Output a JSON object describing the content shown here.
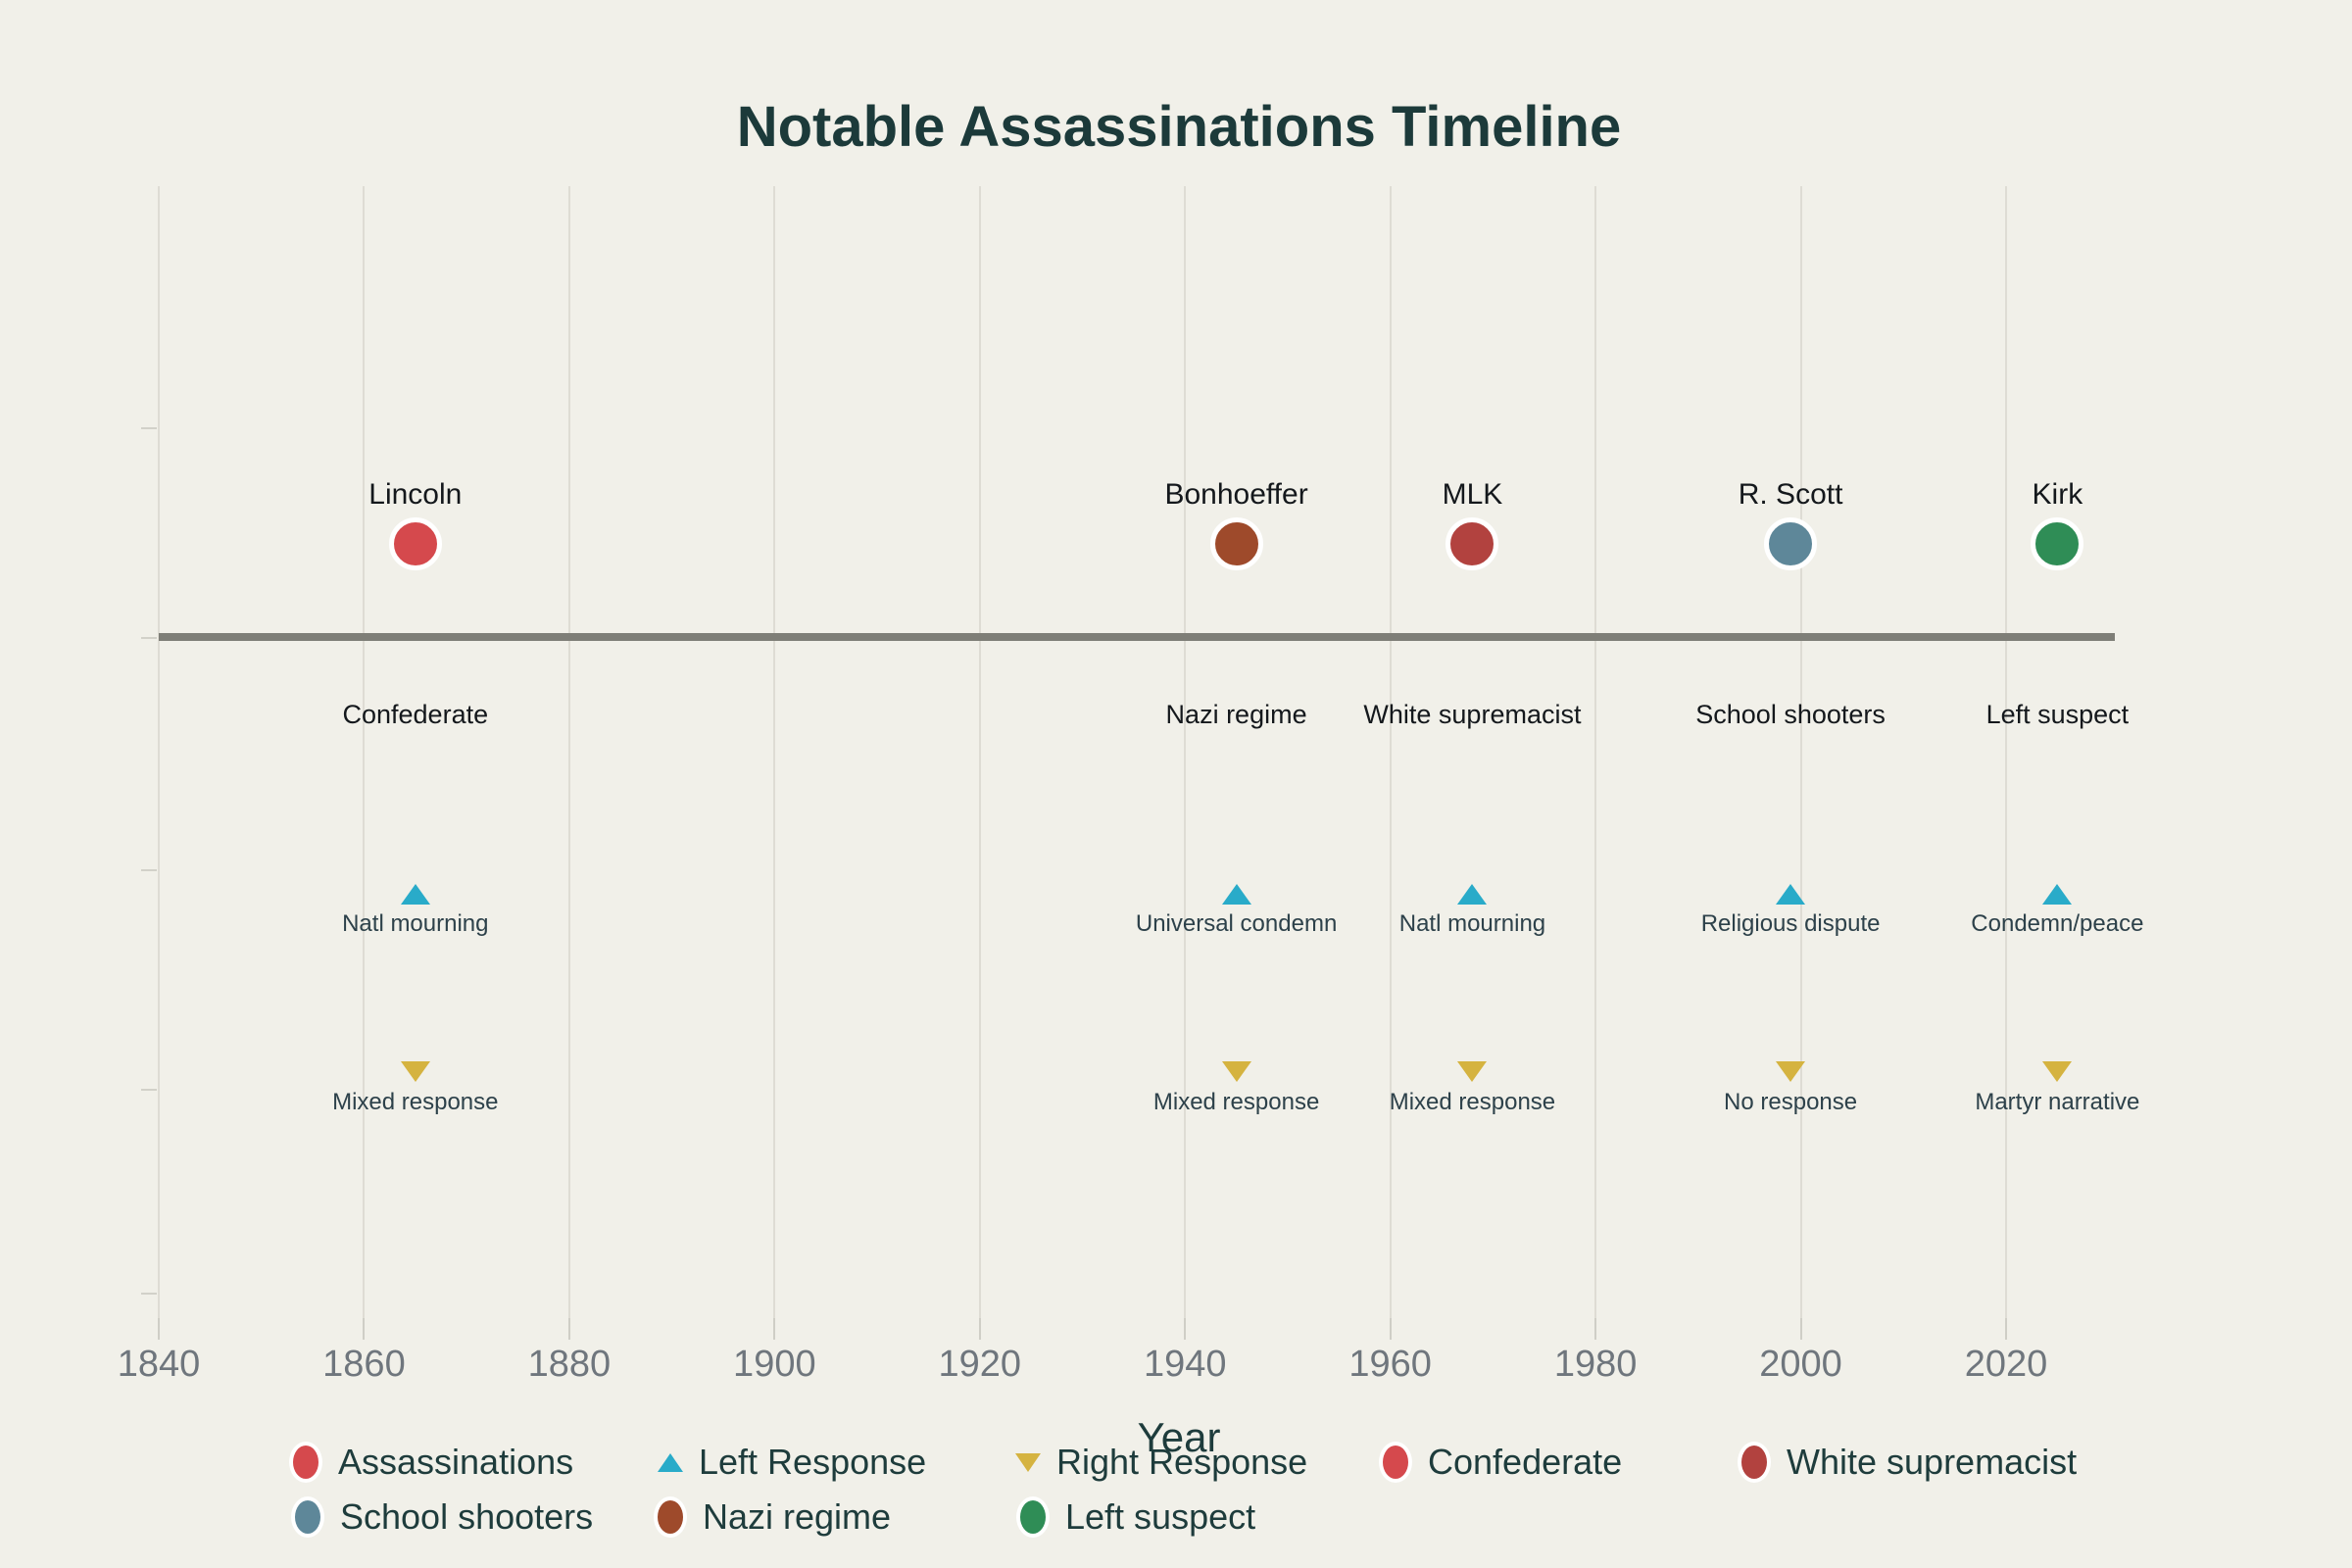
{
  "title": "Notable Assassinations Timeline",
  "axis": {
    "x_title": "Year",
    "x_ticks": [
      "1840",
      "1860",
      "1880",
      "1900",
      "1920",
      "1940",
      "1960",
      "1980",
      "2000",
      "2020"
    ]
  },
  "events": [
    {
      "name": "Lincoln",
      "year": 1865,
      "perpetrator": "Confederate",
      "left_response": "Natl mourning",
      "right_response": "Mixed response",
      "marker_color": "#d5494d"
    },
    {
      "name": "Bonhoeffer",
      "year": 1945,
      "perpetrator": "Nazi regime",
      "left_response": "Universal condemn",
      "right_response": "Mixed response",
      "marker_color": "#9e4a2b"
    },
    {
      "name": "MLK",
      "year": 1968,
      "perpetrator": "White supremacist",
      "left_response": "Natl mourning",
      "right_response": "Mixed response",
      "marker_color": "#b2423f"
    },
    {
      "name": "R. Scott",
      "year": 1999,
      "perpetrator": "School shooters",
      "left_response": "Religious dispute",
      "right_response": "No response",
      "marker_color": "#5e8799"
    },
    {
      "name": "Kirk",
      "year": 2025,
      "perpetrator": "Left suspect",
      "left_response": "Condemn/peace",
      "right_response": "Martyr narrative",
      "marker_color": "#2f8d56"
    }
  ],
  "legend": {
    "rows": [
      [
        {
          "label": "Assassinations",
          "shape": "circle",
          "color": "#d5494d"
        },
        {
          "label": "Left Response",
          "shape": "triangle-up",
          "color": "#29abc9"
        },
        {
          "label": "Right Response",
          "shape": "triangle-down",
          "color": "#d5b340"
        },
        {
          "label": "Confederate",
          "shape": "circle",
          "color": "#d5494d"
        },
        {
          "label": "White supremacist",
          "shape": "circle",
          "color": "#b2423f"
        }
      ],
      [
        {
          "label": "School shooters",
          "shape": "circle",
          "color": "#5e8799"
        },
        {
          "label": "Nazi regime",
          "shape": "circle",
          "color": "#9e4a2b"
        },
        {
          "label": "Left suspect",
          "shape": "circle",
          "color": "#2f8d56"
        }
      ]
    ]
  },
  "colors": {
    "background": "#f1f0e9",
    "title_text": "#1c3a3a",
    "timeline_line": "#7e7e77",
    "left_response": "#29abc9",
    "right_response": "#d5b340",
    "tick_label": "#6f767d",
    "response_label": "#2d414a"
  },
  "chart_data": {
    "type": "scatter",
    "title": "Notable Assassinations Timeline",
    "xlabel": "Year",
    "x_tick_labels": [
      1840,
      1860,
      1880,
      1900,
      1920,
      1940,
      1960,
      1980,
      2000,
      2020
    ],
    "x_range": [
      1838,
      2040
    ],
    "grid": true,
    "legend_position": "bottom",
    "series": [
      {
        "name": "Assassinations",
        "marker": "circle",
        "x": [
          1865,
          1945,
          1968,
          1999,
          2025
        ],
        "labels": [
          "Lincoln",
          "Bonhoeffer",
          "MLK",
          "R. Scott",
          "Kirk"
        ],
        "point_colors": [
          "#d5494d",
          "#9e4a2b",
          "#b2423f",
          "#5e8799",
          "#2f8d56"
        ],
        "point_categories": [
          "Confederate",
          "Nazi regime",
          "White supremacist",
          "School shooters",
          "Left suspect"
        ]
      },
      {
        "name": "Left Response",
        "marker": "triangle-up",
        "color": "#29abc9",
        "x": [
          1865,
          1945,
          1968,
          1999,
          2025
        ],
        "labels": [
          "Natl mourning",
          "Universal condemn",
          "Natl mourning",
          "Religious dispute",
          "Condemn/peace"
        ]
      },
      {
        "name": "Right Response",
        "marker": "triangle-down",
        "color": "#d5b340",
        "x": [
          1865,
          1945,
          1968,
          1999,
          2025
        ],
        "labels": [
          "Mixed response",
          "Mixed response",
          "Mixed response",
          "No response",
          "Martyr narrative"
        ]
      }
    ]
  }
}
